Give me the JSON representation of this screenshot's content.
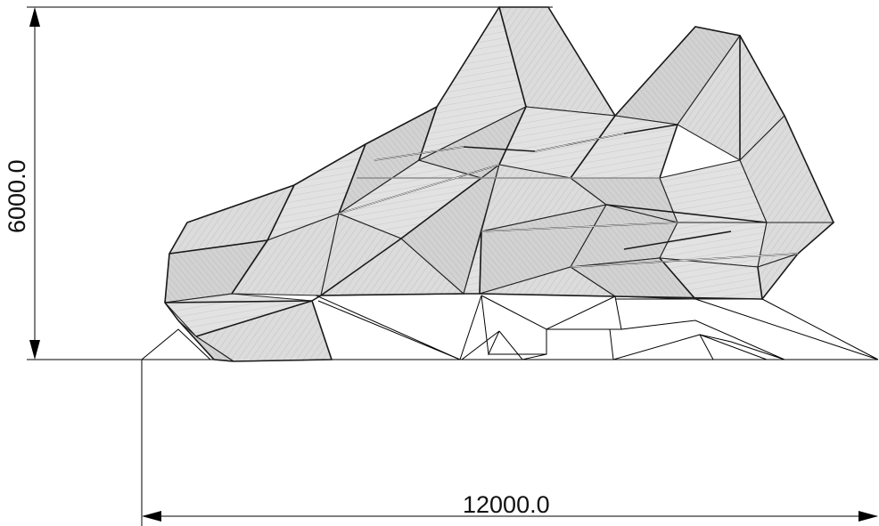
{
  "drawing": {
    "dimensions": {
      "height_label": "6000.0",
      "width_label": "12000.0"
    },
    "colors": {
      "line": "#000000",
      "panel_fill": "#d6d6d6",
      "panel_hatch": "#bdbdbd",
      "background": "#ffffff"
    },
    "icons": [
      "arrow-head-icon"
    ]
  }
}
